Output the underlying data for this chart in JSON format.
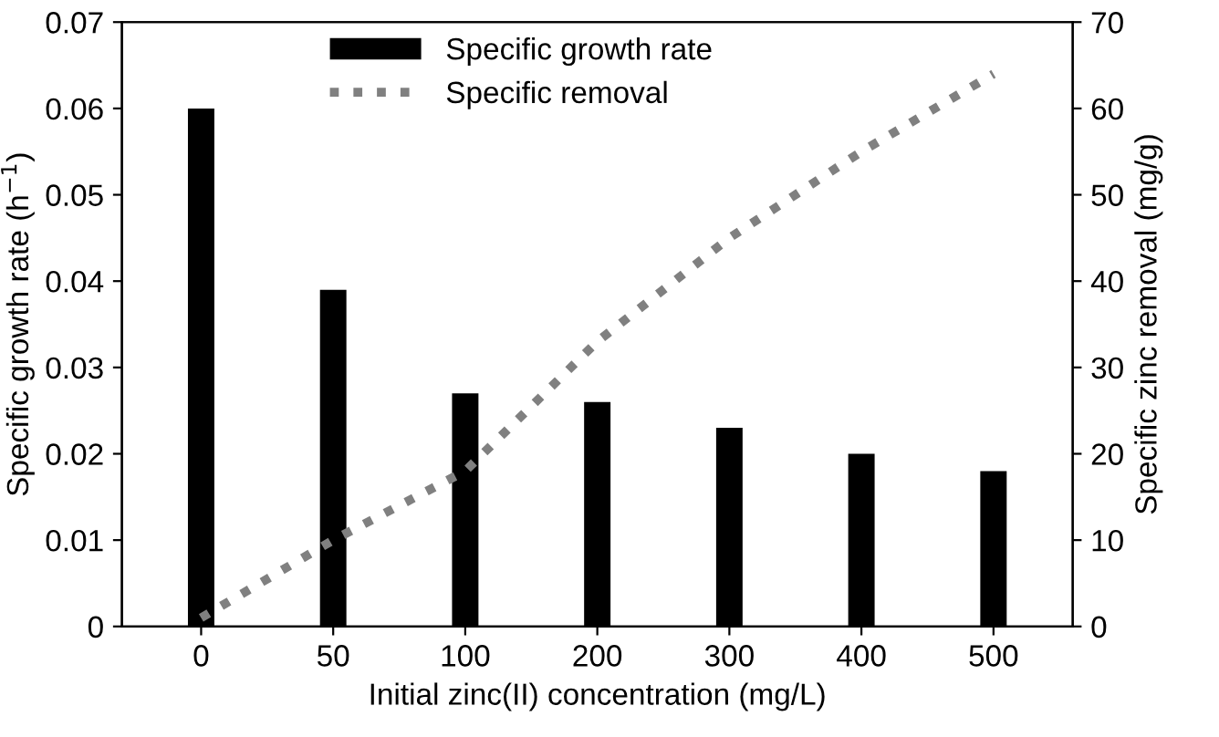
{
  "chart_data": {
    "type": "bar",
    "xlabel": "Initial zinc(II) concentration (mg/L)",
    "ylabel": "Specific growth rate (h$^{−1}$)",
    "y2label": "Specific zinc removal (mg/g)",
    "categories": [
      "0",
      "50",
      "100",
      "200",
      "300",
      "400",
      "500"
    ],
    "series": [
      {
        "name": "Specific growth rate",
        "color": "#000000",
        "values": [
          0.06,
          0.039,
          0.027,
          0.026,
          0.023,
          0.02,
          0.018
        ]
      },
      {
        "name": "Specific removal",
        "type": "line",
        "axis": "y2",
        "color": "#808080",
        "line_style": "dotted",
        "values": [
          1,
          10,
          18,
          33,
          45,
          55,
          64
        ]
      }
    ],
    "ylim": [
      0,
      0.07
    ],
    "yticks": [
      {
        "value": 0,
        "label": "0"
      },
      0.01,
      0.02,
      0.03,
      0.04,
      0.05,
      0.06,
      0.07
    ],
    "y2lim": [
      0,
      70
    ],
    "y2ticks": [
      0,
      10,
      20,
      30,
      40,
      50,
      60,
      70
    ],
    "legend": "top",
    "grid": false
  }
}
